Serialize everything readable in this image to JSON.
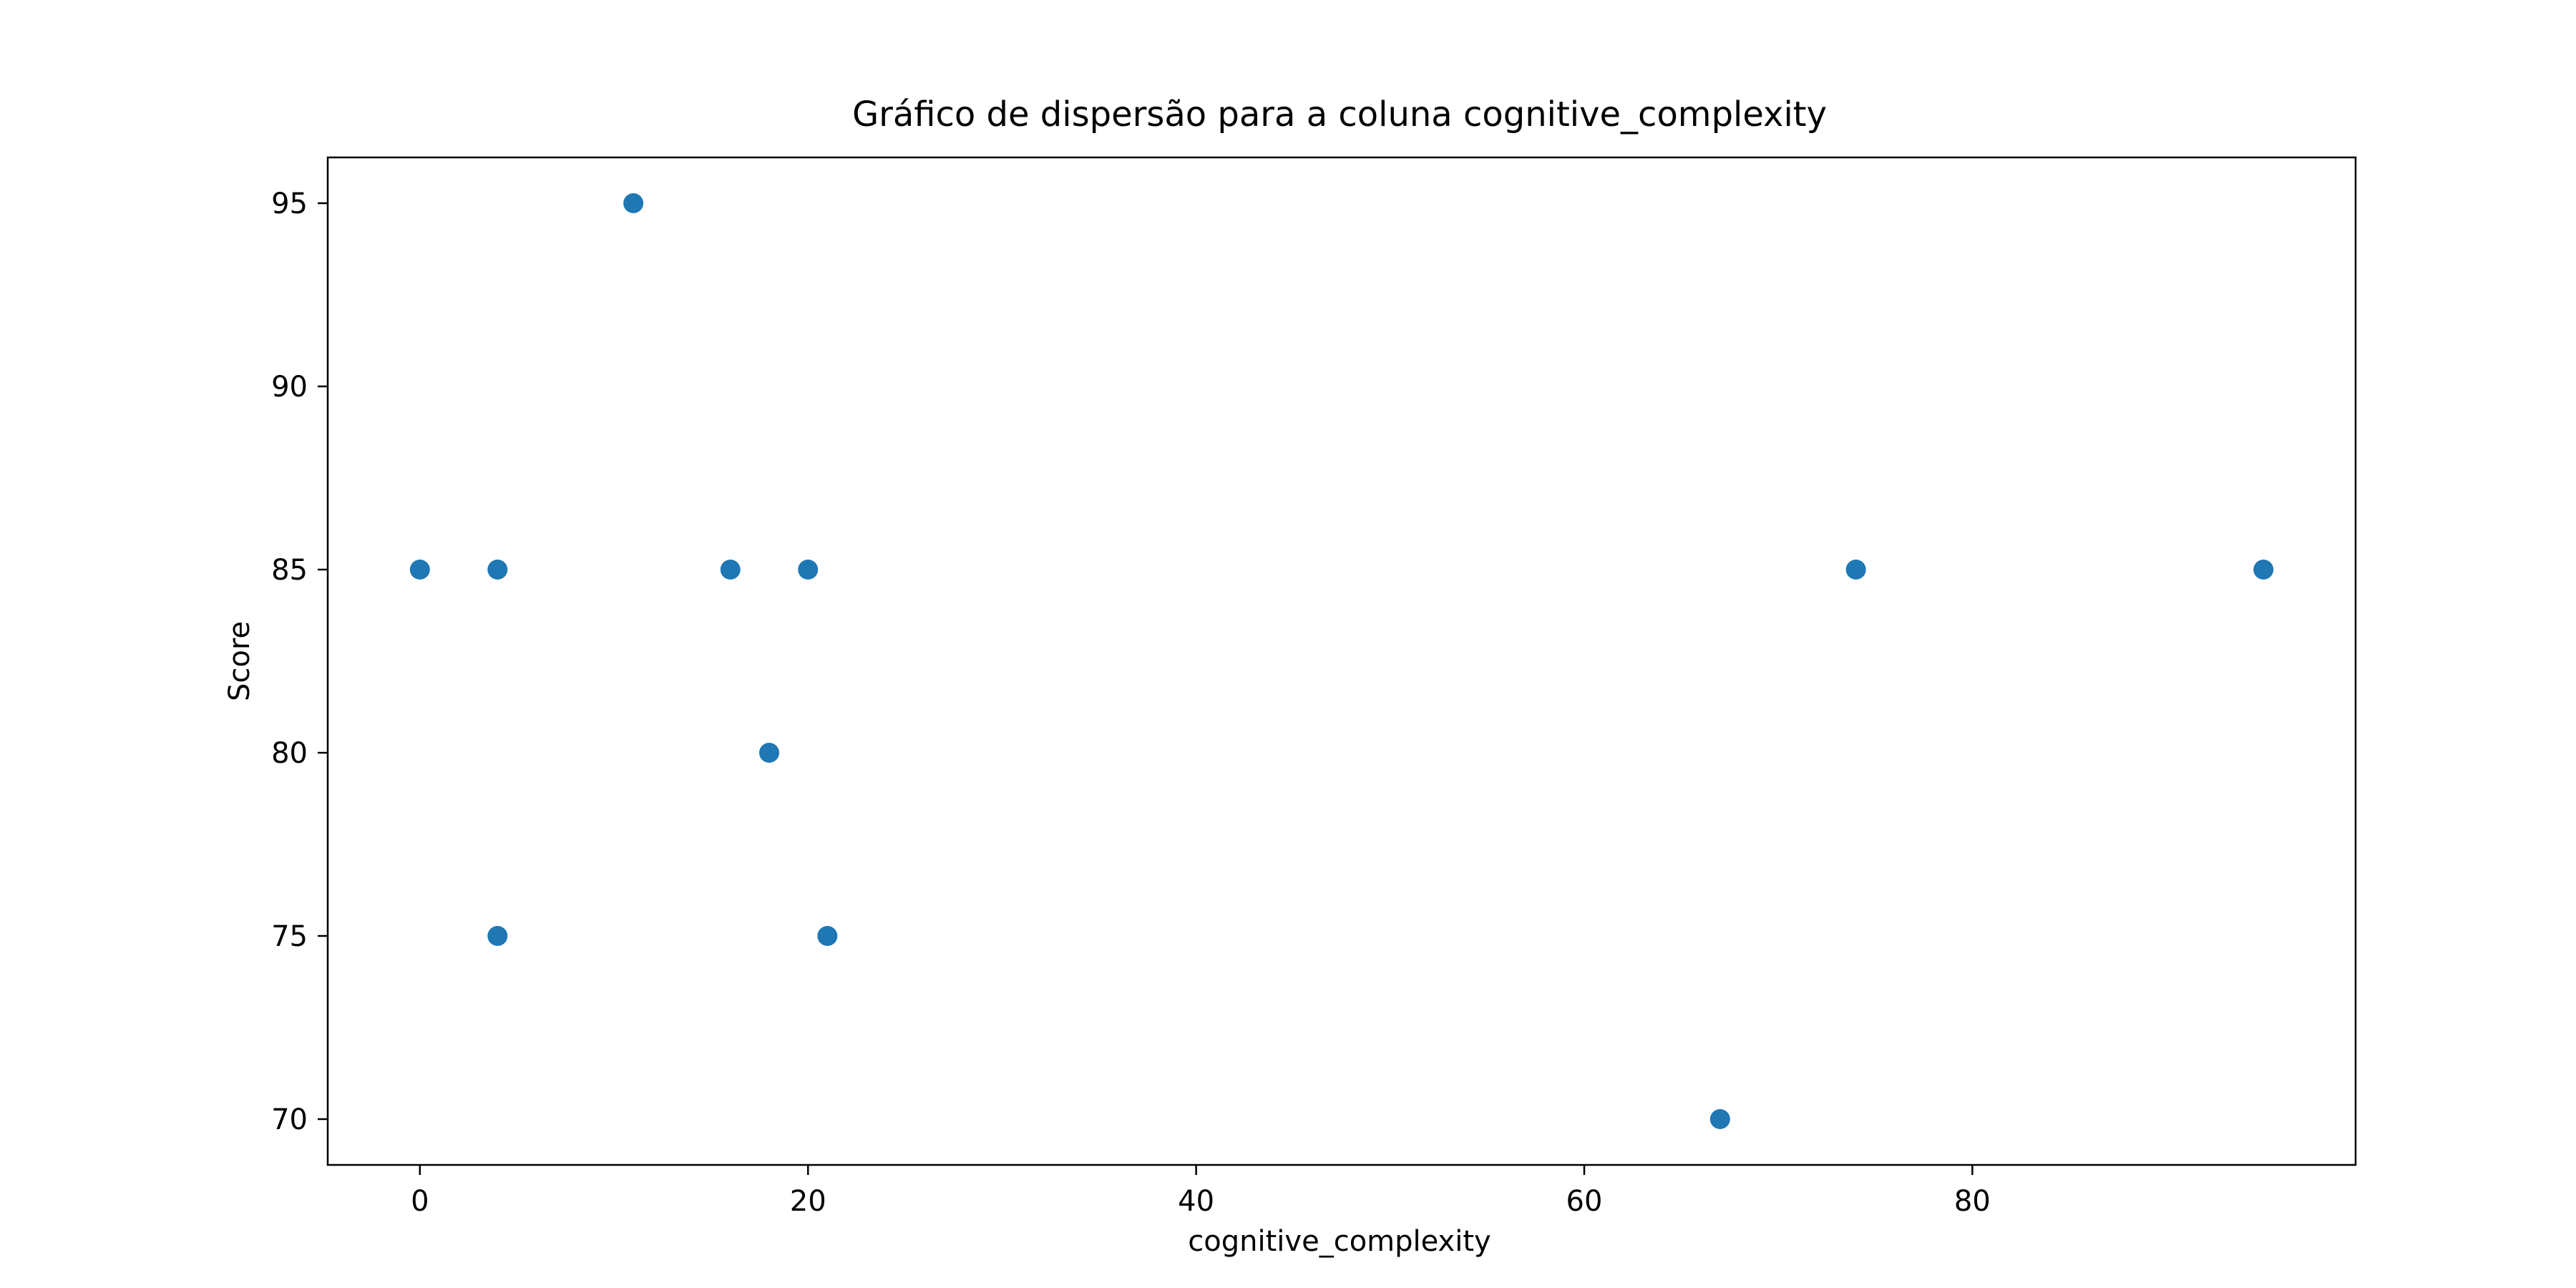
{
  "chart_data": {
    "type": "scatter",
    "title": "Gráfico de dispersão para a coluna cognitive_complexity",
    "xlabel": "cognitive_complexity",
    "ylabel": "Score",
    "xlim": [
      -4.75,
      99.75
    ],
    "ylim": [
      68.75,
      96.25
    ],
    "x_ticks": [
      0,
      20,
      40,
      60,
      80
    ],
    "y_ticks": [
      70,
      75,
      80,
      85,
      90,
      95
    ],
    "grid": false,
    "legend": "none",
    "points": [
      {
        "x": 0,
        "y": 85
      },
      {
        "x": 4,
        "y": 85
      },
      {
        "x": 4,
        "y": 75
      },
      {
        "x": 11,
        "y": 95
      },
      {
        "x": 16,
        "y": 85
      },
      {
        "x": 18,
        "y": 80
      },
      {
        "x": 20,
        "y": 85
      },
      {
        "x": 21,
        "y": 75
      },
      {
        "x": 67,
        "y": 70
      },
      {
        "x": 74,
        "y": 85
      },
      {
        "x": 95,
        "y": 85
      }
    ],
    "colors": {
      "marker": "#1f77b4",
      "axes": "#000000",
      "background": "#ffffff"
    }
  }
}
